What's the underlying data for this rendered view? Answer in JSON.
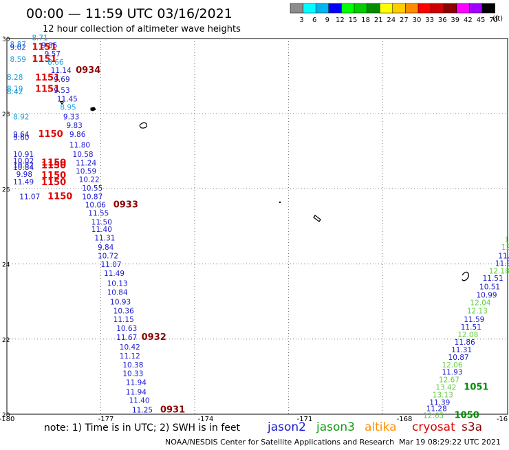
{
  "header": {
    "title": "00:00 — 11:59 UTC 03/16/2021",
    "subtitle": "12 hour collection of altimeter wave heights"
  },
  "legend": {
    "unit": "(ft)",
    "bins": [
      {
        "label": "3",
        "color": "#8c8c8c"
      },
      {
        "label": "6",
        "color": "#00ffff"
      },
      {
        "label": "9",
        "color": "#00b4f0"
      },
      {
        "label": "12",
        "color": "#0000ff"
      },
      {
        "label": "15",
        "color": "#00ff00"
      },
      {
        "label": "18",
        "color": "#00cd00"
      },
      {
        "label": "21",
        "color": "#008c00"
      },
      {
        "label": "24",
        "color": "#ffff00"
      },
      {
        "label": "27",
        "color": "#ffcd00"
      },
      {
        "label": "30",
        "color": "#ff8c00"
      },
      {
        "label": "33",
        "color": "#ff0000"
      },
      {
        "label": "36",
        "color": "#cd0000"
      },
      {
        "label": "39",
        "color": "#8c0000"
      },
      {
        "label": "42",
        "color": "#ff00ff"
      },
      {
        "label": "45",
        "color": "#a000ff"
      },
      {
        "label": "70",
        "color": "#000000"
      }
    ]
  },
  "axes": {
    "lon_ticks": [
      "-180",
      "-177",
      "-174",
      "-171",
      "-168",
      "-16"
    ],
    "lat_ticks": [
      "30",
      "28",
      "26",
      "24",
      "22",
      "20"
    ]
  },
  "footer": {
    "note": "note: 1) Time is in UTC; 2) SWH is in feet",
    "satellites": [
      {
        "name": "jason2",
        "color": "#1a1ad0"
      },
      {
        "name": "jason3",
        "color": "#10a010"
      },
      {
        "name": "altika",
        "color": "#ff9000"
      },
      {
        "name": "cryosat",
        "color": "#e00000"
      },
      {
        "name": "s3a",
        "color": "#8b0000"
      }
    ],
    "credit": "NOAA/NESDIS Center for Satellite Applications and Research",
    "timestamp": "Mar 19 08:29:22 UTC 2021"
  },
  "colors": {
    "sat_blue": "#1a1ad0",
    "sat_cyan": "#20a0e0",
    "sat_green": "#60d040",
    "time_red": "#e00000",
    "time_darkred": "#8b0000",
    "time_green": "#008c00",
    "grid": "#777777"
  },
  "observations": [
    {
      "t": "8.71",
      "lon": -179.2,
      "lat": 29.95,
      "c": "sat_cyan"
    },
    {
      "t": "8.87",
      "lon": -179.9,
      "lat": 29.78,
      "c": "sat_cyan"
    },
    {
      "t": "9.02",
      "lon": -179.9,
      "lat": 29.7,
      "c": "sat_blue"
    },
    {
      "t": "1151",
      "lon": -179.2,
      "lat": 29.7,
      "c": "time_red",
      "big": true
    },
    {
      "t": "9.85",
      "lon": -178.9,
      "lat": 29.75,
      "c": "sat_blue"
    },
    {
      "t": "9.57",
      "lon": -178.8,
      "lat": 29.52,
      "c": "sat_blue"
    },
    {
      "t": "8.59",
      "lon": -179.9,
      "lat": 29.38,
      "c": "sat_cyan"
    },
    {
      "t": "1151",
      "lon": -179.2,
      "lat": 29.38,
      "c": "time_red",
      "big": true
    },
    {
      "t": "8.66",
      "lon": -178.7,
      "lat": 29.3,
      "c": "sat_cyan"
    },
    {
      "t": "11.14",
      "lon": -178.6,
      "lat": 29.08,
      "c": "sat_blue"
    },
    {
      "t": "0934",
      "lon": -177.8,
      "lat": 29.08,
      "c": "time_darkred",
      "big": true
    },
    {
      "t": "8.28",
      "lon": -180.0,
      "lat": 28.9,
      "c": "sat_cyan"
    },
    {
      "t": "1151",
      "lon": -179.1,
      "lat": 28.88,
      "c": "time_red",
      "big": true
    },
    {
      "t": "9.69",
      "lon": -178.5,
      "lat": 28.85,
      "c": "sat_blue"
    },
    {
      "t": "8.19",
      "lon": -180.0,
      "lat": 28.6,
      "c": "sat_cyan"
    },
    {
      "t": "8.42",
      "lon": -180.0,
      "lat": 28.52,
      "c": "sat_cyan"
    },
    {
      "t": "1151",
      "lon": -179.1,
      "lat": 28.58,
      "c": "time_red",
      "big": true
    },
    {
      "t": "9.53",
      "lon": -178.5,
      "lat": 28.55,
      "c": "sat_blue"
    },
    {
      "t": "11.45",
      "lon": -178.4,
      "lat": 28.32,
      "c": "sat_blue"
    },
    {
      "t": "8.95",
      "lon": -178.3,
      "lat": 28.1,
      "c": "sat_cyan"
    },
    {
      "t": "8.92",
      "lon": -179.8,
      "lat": 27.85,
      "c": "sat_cyan"
    },
    {
      "t": "9.33",
      "lon": -178.2,
      "lat": 27.85,
      "c": "sat_blue"
    },
    {
      "t": "9.83",
      "lon": -178.1,
      "lat": 27.62,
      "c": "sat_blue"
    },
    {
      "t": "9.64",
      "lon": -179.8,
      "lat": 27.38,
      "c": "sat_blue"
    },
    {
      "t": "9.60",
      "lon": -179.8,
      "lat": 27.3,
      "c": "sat_blue"
    },
    {
      "t": "1150",
      "lon": -179.0,
      "lat": 27.38,
      "c": "time_red",
      "big": true
    },
    {
      "t": "9.86",
      "lon": -178.0,
      "lat": 27.38,
      "c": "sat_blue"
    },
    {
      "t": "11.80",
      "lon": -178.0,
      "lat": 27.1,
      "c": "sat_blue"
    },
    {
      "t": "10.91",
      "lon": -179.8,
      "lat": 26.85,
      "c": "sat_blue"
    },
    {
      "t": "10.58",
      "lon": -177.9,
      "lat": 26.85,
      "c": "sat_blue"
    },
    {
      "t": "10.02",
      "lon": -179.8,
      "lat": 26.68,
      "c": "sat_blue"
    },
    {
      "t": "10.82",
      "lon": -179.8,
      "lat": 26.57,
      "c": "sat_blue"
    },
    {
      "t": "10.84",
      "lon": -179.8,
      "lat": 26.5,
      "c": "sat_blue"
    },
    {
      "t": "1150",
      "lon": -178.9,
      "lat": 26.62,
      "c": "time_red",
      "big": true
    },
    {
      "t": "1150",
      "lon": -178.9,
      "lat": 26.55,
      "c": "time_red",
      "big": true
    },
    {
      "t": "11.24",
      "lon": -177.8,
      "lat": 26.62,
      "c": "sat_blue"
    },
    {
      "t": "9.98",
      "lon": -179.7,
      "lat": 26.32,
      "c": "sat_blue"
    },
    {
      "t": "1150",
      "lon": -178.9,
      "lat": 26.28,
      "c": "time_red",
      "big": true
    },
    {
      "t": "10.59",
      "lon": -177.8,
      "lat": 26.4,
      "c": "sat_blue"
    },
    {
      "t": "11.49",
      "lon": -179.8,
      "lat": 26.12,
      "c": "sat_blue"
    },
    {
      "t": "1150",
      "lon": -178.9,
      "lat": 26.1,
      "c": "time_red",
      "big": true
    },
    {
      "t": "10.22",
      "lon": -177.7,
      "lat": 26.18,
      "c": "sat_blue"
    },
    {
      "t": "10.55",
      "lon": -177.6,
      "lat": 25.95,
      "c": "sat_blue"
    },
    {
      "t": "11.07",
      "lon": -179.6,
      "lat": 25.72,
      "c": "sat_blue"
    },
    {
      "t": "1150",
      "lon": -178.7,
      "lat": 25.72,
      "c": "time_red",
      "big": true
    },
    {
      "t": "10.87",
      "lon": -177.6,
      "lat": 25.72,
      "c": "sat_blue"
    },
    {
      "t": "10.06",
      "lon": -177.5,
      "lat": 25.5,
      "c": "sat_blue"
    },
    {
      "t": "0933",
      "lon": -176.6,
      "lat": 25.5,
      "c": "time_darkred",
      "big": true
    },
    {
      "t": "11.55",
      "lon": -177.4,
      "lat": 25.28,
      "c": "sat_blue"
    },
    {
      "t": "11.50",
      "lon": -177.3,
      "lat": 25.05,
      "c": "sat_blue"
    },
    {
      "t": "11.40",
      "lon": -177.3,
      "lat": 24.85,
      "c": "sat_blue"
    },
    {
      "t": "11.31",
      "lon": -177.2,
      "lat": 24.62,
      "c": "sat_blue"
    },
    {
      "t": "9.84",
      "lon": -177.1,
      "lat": 24.38,
      "c": "sat_blue"
    },
    {
      "t": "10.72",
      "lon": -177.1,
      "lat": 24.15,
      "c": "sat_blue"
    },
    {
      "t": "11.07",
      "lon": -177.0,
      "lat": 23.92,
      "c": "sat_blue"
    },
    {
      "t": "11.49",
      "lon": -176.9,
      "lat": 23.68,
      "c": "sat_blue"
    },
    {
      "t": "10.13",
      "lon": -176.8,
      "lat": 23.42,
      "c": "sat_blue"
    },
    {
      "t": "10.84",
      "lon": -176.8,
      "lat": 23.18,
      "c": "sat_blue"
    },
    {
      "t": "10.93",
      "lon": -176.7,
      "lat": 22.92,
      "c": "sat_blue"
    },
    {
      "t": "10.36",
      "lon": -176.6,
      "lat": 22.68,
      "c": "sat_blue"
    },
    {
      "t": "11.15",
      "lon": -176.6,
      "lat": 22.45,
      "c": "sat_blue"
    },
    {
      "t": "10.63",
      "lon": -176.5,
      "lat": 22.22,
      "c": "sat_blue"
    },
    {
      "t": "11.67",
      "lon": -176.5,
      "lat": 21.98,
      "c": "sat_blue"
    },
    {
      "t": "0932",
      "lon": -175.7,
      "lat": 21.98,
      "c": "time_darkred",
      "big": true
    },
    {
      "t": "10.42",
      "lon": -176.4,
      "lat": 21.72,
      "c": "sat_blue"
    },
    {
      "t": "11.12",
      "lon": -176.4,
      "lat": 21.48,
      "c": "sat_blue"
    },
    {
      "t": "10.38",
      "lon": -176.3,
      "lat": 21.25,
      "c": "sat_blue"
    },
    {
      "t": "10.33",
      "lon": -176.3,
      "lat": 21.02,
      "c": "sat_blue"
    },
    {
      "t": "11.94",
      "lon": -176.2,
      "lat": 20.78,
      "c": "sat_blue"
    },
    {
      "t": "11.94",
      "lon": -176.2,
      "lat": 20.52,
      "c": "sat_blue"
    },
    {
      "t": "11.40",
      "lon": -176.1,
      "lat": 20.3,
      "c": "sat_blue"
    },
    {
      "t": "11.25",
      "lon": -176.0,
      "lat": 20.05,
      "c": "sat_blue"
    },
    {
      "t": "0931",
      "lon": -175.1,
      "lat": 20.05,
      "c": "time_darkred",
      "big": true
    },
    {
      "t": "12.",
      "lon": -163.9,
      "lat": 25.55,
      "c": "sat_green"
    },
    {
      "t": "12.",
      "lon": -163.9,
      "lat": 25.35,
      "c": "sat_green"
    },
    {
      "t": "11.4",
      "lon": -163.9,
      "lat": 25.15,
      "c": "sat_blue"
    },
    {
      "t": "12.81",
      "lon": -163.9,
      "lat": 24.95,
      "c": "sat_green"
    },
    {
      "t": "12.30",
      "lon": -163.9,
      "lat": 24.78,
      "c": "sat_green"
    },
    {
      "t": "12.58",
      "lon": -164.1,
      "lat": 24.58,
      "c": "sat_green"
    },
    {
      "t": "12.87",
      "lon": -164.2,
      "lat": 24.38,
      "c": "sat_green"
    },
    {
      "t": "11.98",
      "lon": -164.3,
      "lat": 24.15,
      "c": "sat_blue"
    },
    {
      "t": "11.98",
      "lon": -164.4,
      "lat": 23.95,
      "c": "sat_blue"
    },
    {
      "t": "12.18",
      "lon": -164.6,
      "lat": 23.75,
      "c": "sat_green"
    },
    {
      "t": "11.51",
      "lon": -164.8,
      "lat": 23.55,
      "c": "sat_blue"
    },
    {
      "t": "105",
      "lon": -163.9,
      "lat": 23.55,
      "c": "time_green",
      "big": true
    },
    {
      "t": "10.51",
      "lon": -164.9,
      "lat": 23.32,
      "c": "sat_blue"
    },
    {
      "t": "10.99",
      "lon": -165.0,
      "lat": 23.1,
      "c": "sat_blue"
    },
    {
      "t": "12.04",
      "lon": -165.2,
      "lat": 22.9,
      "c": "sat_green"
    },
    {
      "t": "12.13",
      "lon": -165.3,
      "lat": 22.68,
      "c": "sat_green"
    },
    {
      "t": "11.59",
      "lon": -165.4,
      "lat": 22.45,
      "c": "sat_blue"
    },
    {
      "t": "11.51",
      "lon": -165.5,
      "lat": 22.25,
      "c": "sat_blue"
    },
    {
      "t": "12.08",
      "lon": -165.6,
      "lat": 22.05,
      "c": "sat_green"
    },
    {
      "t": "11.86",
      "lon": -165.7,
      "lat": 21.85,
      "c": "sat_blue"
    },
    {
      "t": "11.31",
      "lon": -165.8,
      "lat": 21.65,
      "c": "sat_blue"
    },
    {
      "t": "10.87",
      "lon": -165.9,
      "lat": 21.45,
      "c": "sat_blue"
    },
    {
      "t": "12.06",
      "lon": -166.1,
      "lat": 21.25,
      "c": "sat_green"
    },
    {
      "t": "11.93",
      "lon": -166.1,
      "lat": 21.05,
      "c": "sat_blue"
    },
    {
      "t": "12.67",
      "lon": -166.2,
      "lat": 20.85,
      "c": "sat_green"
    },
    {
      "t": "13.42",
      "lon": -166.3,
      "lat": 20.65,
      "c": "sat_green"
    },
    {
      "t": "1051",
      "lon": -165.4,
      "lat": 20.65,
      "c": "time_green",
      "big": true
    },
    {
      "t": "13.13",
      "lon": -166.4,
      "lat": 20.45,
      "c": "sat_green"
    },
    {
      "t": "11.39",
      "lon": -166.5,
      "lat": 20.25,
      "c": "sat_blue"
    },
    {
      "t": "11.28",
      "lon": -166.6,
      "lat": 20.08,
      "c": "sat_blue"
    },
    {
      "t": "12.65",
      "lon": -166.7,
      "lat": 19.9,
      "c": "sat_green"
    },
    {
      "t": "1050",
      "lon": -165.7,
      "lat": 19.9,
      "c": "time_green",
      "big": true
    }
  ]
}
